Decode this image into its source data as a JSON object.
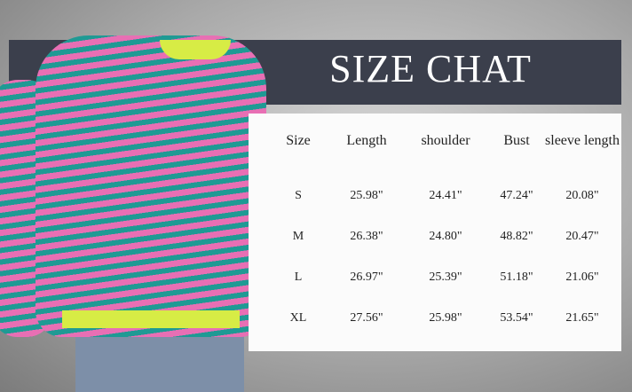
{
  "title": "SIZE CHAT",
  "table": {
    "headers": [
      "Size",
      "Length",
      "shoulder",
      "Bust",
      "sleeve length"
    ],
    "rows": [
      [
        "S",
        "25.98\"",
        "24.41\"",
        "47.24\"",
        "20.08\""
      ],
      [
        "M",
        "26.38\"",
        "24.80\"",
        "48.82\"",
        "20.47\""
      ],
      [
        "L",
        "26.97\"",
        "25.39\"",
        "51.18\"",
        "21.06\""
      ],
      [
        "XL",
        "27.56\"",
        "25.98\"",
        "53.54\"",
        "21.65\""
      ]
    ]
  },
  "colors": {
    "banner": "#3b3f4c",
    "stripe_pink": "#e86fb4",
    "stripe_teal": "#1f9a94",
    "trim": "#d7ec45"
  }
}
